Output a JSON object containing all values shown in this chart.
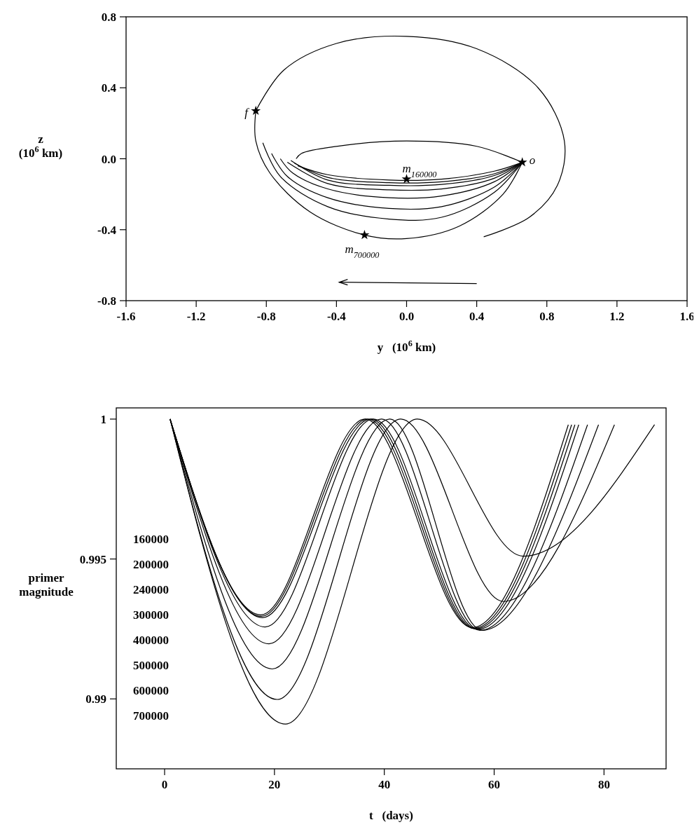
{
  "chart_data": [
    {
      "type": "line",
      "xlabel": "y   (10$^{6}$ km)",
      "ylabel": "z\n(10$^{6}$ km)",
      "xlim": [
        -1.6,
        1.6
      ],
      "ylim": [
        -0.8,
        0.8
      ],
      "xticks": [
        -1.6,
        -1.2,
        -0.8,
        -0.4,
        {
          "value": 0,
          "label": "0.0"
        },
        0.4,
        0.8,
        1.2,
        1.6
      ],
      "yticks": [
        -0.8,
        -0.4,
        {
          "value": 0,
          "label": "0.0"
        },
        0.4,
        0.8
      ],
      "grid": false,
      "line_style": "solid",
      "series": [
        {
          "color": "#000000",
          "x": [
            0.66,
            0.4,
            0,
            -0.4,
            -0.6,
            -0.63
          ],
          "values": [
            -0.02,
            0.07,
            0.1,
            0.07,
            0.03,
            0.0
          ]
        },
        {
          "color": "#000000",
          "x": [
            -0.86,
            -0.7,
            -0.4,
            0,
            0.4,
            0.75,
            0.9,
            0.86,
            0.7,
            0.44
          ],
          "values": [
            0.27,
            0.5,
            0.65,
            0.69,
            0.62,
            0.4,
            0.1,
            -0.15,
            -0.33,
            -0.44
          ]
        },
        {
          "color": "#000000",
          "x": [
            0.66,
            0.5,
            0.2,
            -0.1,
            -0.45,
            -0.62
          ],
          "values": [
            -0.02,
            -0.07,
            -0.115,
            -0.12,
            -0.09,
            -0.04
          ]
        },
        {
          "color": "#000000",
          "x": [
            0.66,
            0.5,
            0.2,
            -0.1,
            -0.45,
            -0.64
          ],
          "values": [
            -0.02,
            -0.085,
            -0.13,
            -0.135,
            -0.105,
            -0.025
          ]
        },
        {
          "color": "#000000",
          "x": [
            0.66,
            0.5,
            0.2,
            -0.1,
            -0.45,
            -0.66
          ],
          "values": [
            -0.02,
            -0.095,
            -0.145,
            -0.15,
            -0.12,
            -0.01
          ]
        },
        {
          "color": "#000000",
          "x": [
            0.66,
            0.5,
            0.2,
            -0.1,
            -0.45,
            -0.68
          ],
          "values": [
            -0.02,
            -0.11,
            -0.17,
            -0.175,
            -0.14,
            -0.02
          ]
        },
        {
          "color": "#000000",
          "x": [
            0.66,
            0.5,
            0.2,
            -0.1,
            -0.45,
            -0.65,
            -0.72
          ],
          "values": [
            -0.02,
            -0.13,
            -0.21,
            -0.22,
            -0.17,
            -0.08,
            0.0
          ]
        },
        {
          "color": "#000000",
          "x": [
            0.66,
            0.5,
            0.2,
            -0.1,
            -0.45,
            -0.68,
            -0.77
          ],
          "values": [
            -0.02,
            -0.16,
            -0.27,
            -0.28,
            -0.22,
            -0.1,
            0.03
          ]
        },
        {
          "color": "#000000",
          "x": [
            0.66,
            0.5,
            0.2,
            -0.1,
            -0.45,
            -0.72,
            -0.82
          ],
          "values": [
            -0.02,
            -0.19,
            -0.33,
            -0.34,
            -0.27,
            -0.1,
            0.09
          ]
        },
        {
          "color": "#000000",
          "x": [
            0.66,
            0.55,
            0.3,
            0,
            -0.24,
            -0.55,
            -0.78,
            -0.86,
            -0.86
          ],
          "values": [
            -0.02,
            -0.2,
            -0.38,
            -0.45,
            -0.43,
            -0.3,
            -0.08,
            0.1,
            0.27
          ]
        },
        {
          "type": "scatter",
          "marker": "star",
          "color": "#000000",
          "x": [
            -0.86,
            0.66,
            0,
            -0.24
          ],
          "values": [
            0.27,
            -0.02,
            -0.115,
            -0.43
          ]
        }
      ],
      "annotations": [
        {
          "text": "f",
          "x": -0.86,
          "y": 0.27
        },
        {
          "text": "o",
          "x": 0.66,
          "y": -0.02
        },
        {
          "text": "m$_{160000}$",
          "x": 0,
          "y": -0.115
        },
        {
          "text": "m$_{700000}$",
          "x": -0.24,
          "y": -0.43
        }
      ]
    },
    {
      "type": "line",
      "xlabel": "t   (days)",
      "ylabel": "primer\nmagnitude",
      "xlim": [
        -8.8,
        91.3
      ],
      "ylim": [
        0.9875,
        1.0004
      ],
      "xticks": [
        0,
        20,
        40,
        60,
        80
      ],
      "yticks": [
        0.99,
        0.995,
        1
      ],
      "grid": false,
      "line_style": "solid",
      "series": [
        {
          "color": "#000000",
          "x": [
            1,
            17.5,
            36.5,
            56,
            73.5
          ],
          "values": [
            1,
            0.993,
            1,
            0.99255,
            0.9998
          ]
        },
        {
          "color": "#000000",
          "x": [
            1,
            17.6,
            37,
            56.3,
            74.1
          ],
          "values": [
            1,
            0.99295,
            1,
            0.99252,
            0.9998
          ]
        },
        {
          "color": "#000000",
          "x": [
            1,
            17.8,
            37.5,
            56.6,
            74.7
          ],
          "values": [
            1,
            0.9929,
            1,
            0.9925,
            0.9998
          ]
        },
        {
          "color": "#000000",
          "x": [
            1,
            18.3,
            38,
            57,
            75.4
          ],
          "values": [
            1,
            0.99257,
            1,
            0.99248,
            0.9998
          ]
        },
        {
          "color": "#000000",
          "x": [
            1,
            19,
            39.5,
            57.4,
            77
          ],
          "values": [
            1,
            0.99197,
            1,
            0.99245,
            0.9998
          ]
        },
        {
          "color": "#000000",
          "x": [
            1,
            19.6,
            41,
            57.8,
            79
          ],
          "values": [
            1,
            0.99107,
            1,
            0.99245,
            0.9998
          ]
        },
        {
          "color": "#000000",
          "x": [
            1,
            20.5,
            43,
            61.7,
            81.9
          ],
          "values": [
            1,
            0.98998,
            1,
            0.99348,
            0.9998
          ]
        },
        {
          "color": "#000000",
          "x": [
            1,
            22,
            46,
            65.3,
            89.2
          ],
          "values": [
            1,
            0.9891,
            1,
            0.9951,
            0.9998
          ]
        }
      ],
      "annotations": [
        "160000",
        "200000",
        "240000",
        "300000",
        "400000",
        "500000",
        "600000",
        "700000"
      ]
    }
  ]
}
